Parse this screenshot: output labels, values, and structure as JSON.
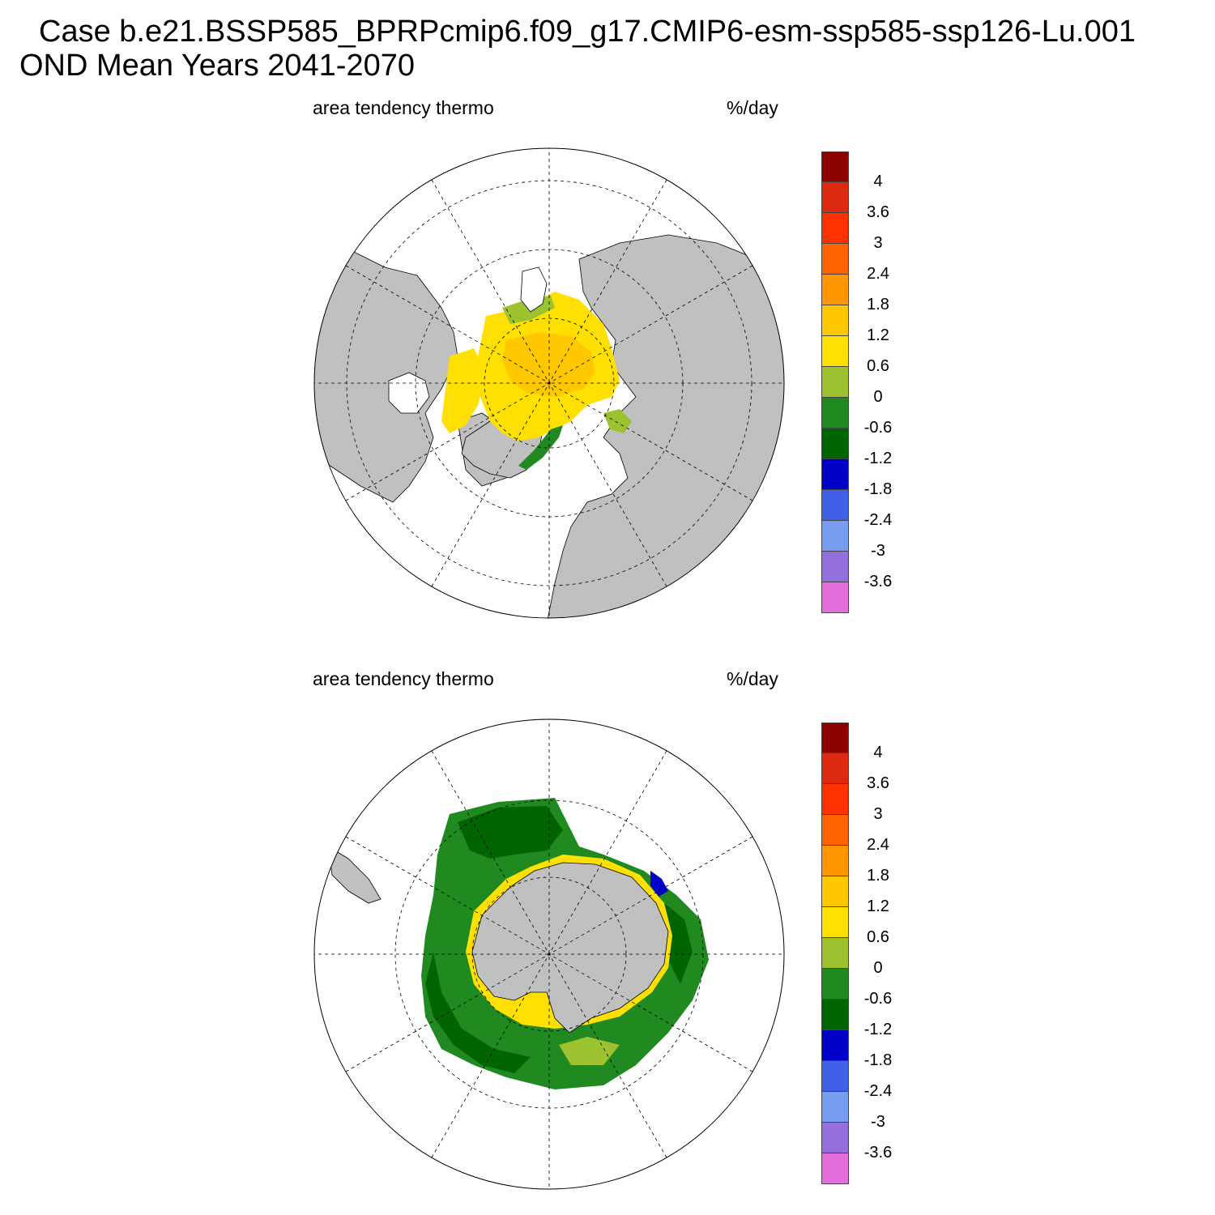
{
  "title": {
    "line1": "Case b.e21.BSSP585_BPRPcmip6.f09_g17.CMIP6-esm-ssp585-ssp126-Lu.001",
    "line2": "OND Mean   Years 2041-2070"
  },
  "panels": [
    {
      "hemisphere": "north",
      "left_label": "area tendency thermo",
      "right_label": "%/day"
    },
    {
      "hemisphere": "south",
      "left_label": "area tendency thermo",
      "right_label": "%/day"
    }
  ],
  "colorbar": {
    "levels": [
      "4",
      "3.6",
      "3",
      "2.4",
      "1.8",
      "1.2",
      "0.6",
      "0",
      "-0.6",
      "-1.2",
      "-1.8",
      "-2.4",
      "-3",
      "-3.6"
    ],
    "colors": [
      "#8b0000",
      "#dc2a10",
      "#ff3200",
      "#ff6400",
      "#ff9600",
      "#ffc800",
      "#ffe000",
      "#9dc22f",
      "#208a20",
      "#006400",
      "#0000c8",
      "#4060e8",
      "#789cf0",
      "#9370db",
      "#e46fdc"
    ]
  },
  "colors": {
    "land": "#c0c0c0",
    "ocean": "#ffffff"
  }
}
